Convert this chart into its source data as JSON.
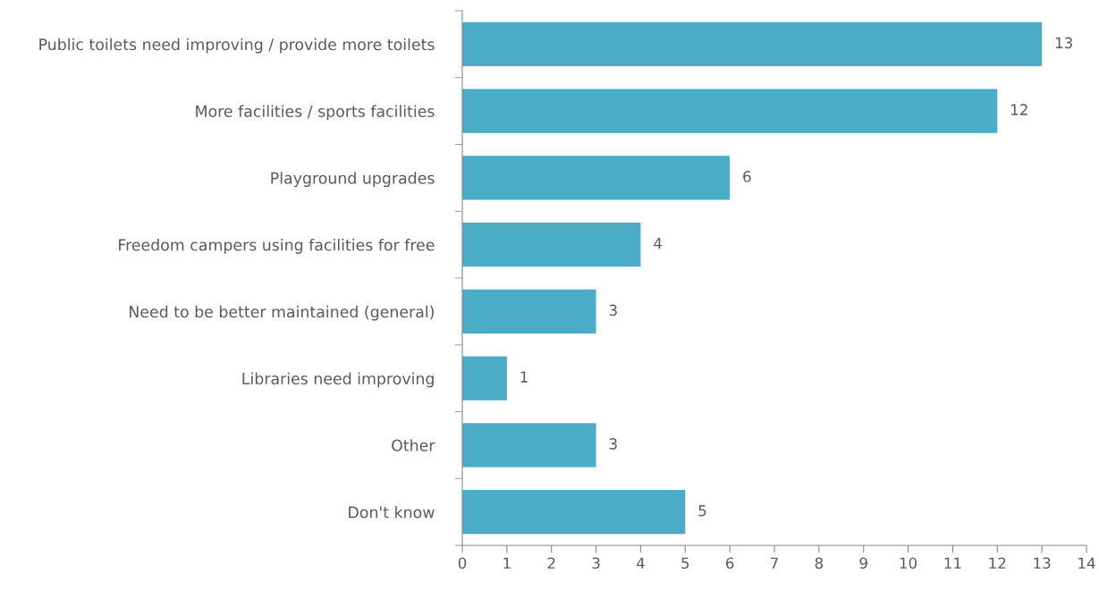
{
  "chart_data": {
    "type": "bar",
    "orientation": "horizontal",
    "categories": [
      "Public toilets need improving / provide more toilets",
      "More facilities / sports facilities",
      "Playground upgrades",
      "Freedom campers using facilities for free",
      "Need to be better maintained (general)",
      "Libraries need improving",
      "Other",
      "Don't know"
    ],
    "values": [
      13,
      12,
      6,
      4,
      3,
      1,
      3,
      5
    ],
    "color": "#4aacc6",
    "xlim": [
      0,
      14
    ],
    "xticks": [
      0,
      1,
      2,
      3,
      4,
      5,
      6,
      7,
      8,
      9,
      10,
      11,
      12,
      13,
      14
    ],
    "data_labels": true,
    "grid": false,
    "legend": false
  }
}
